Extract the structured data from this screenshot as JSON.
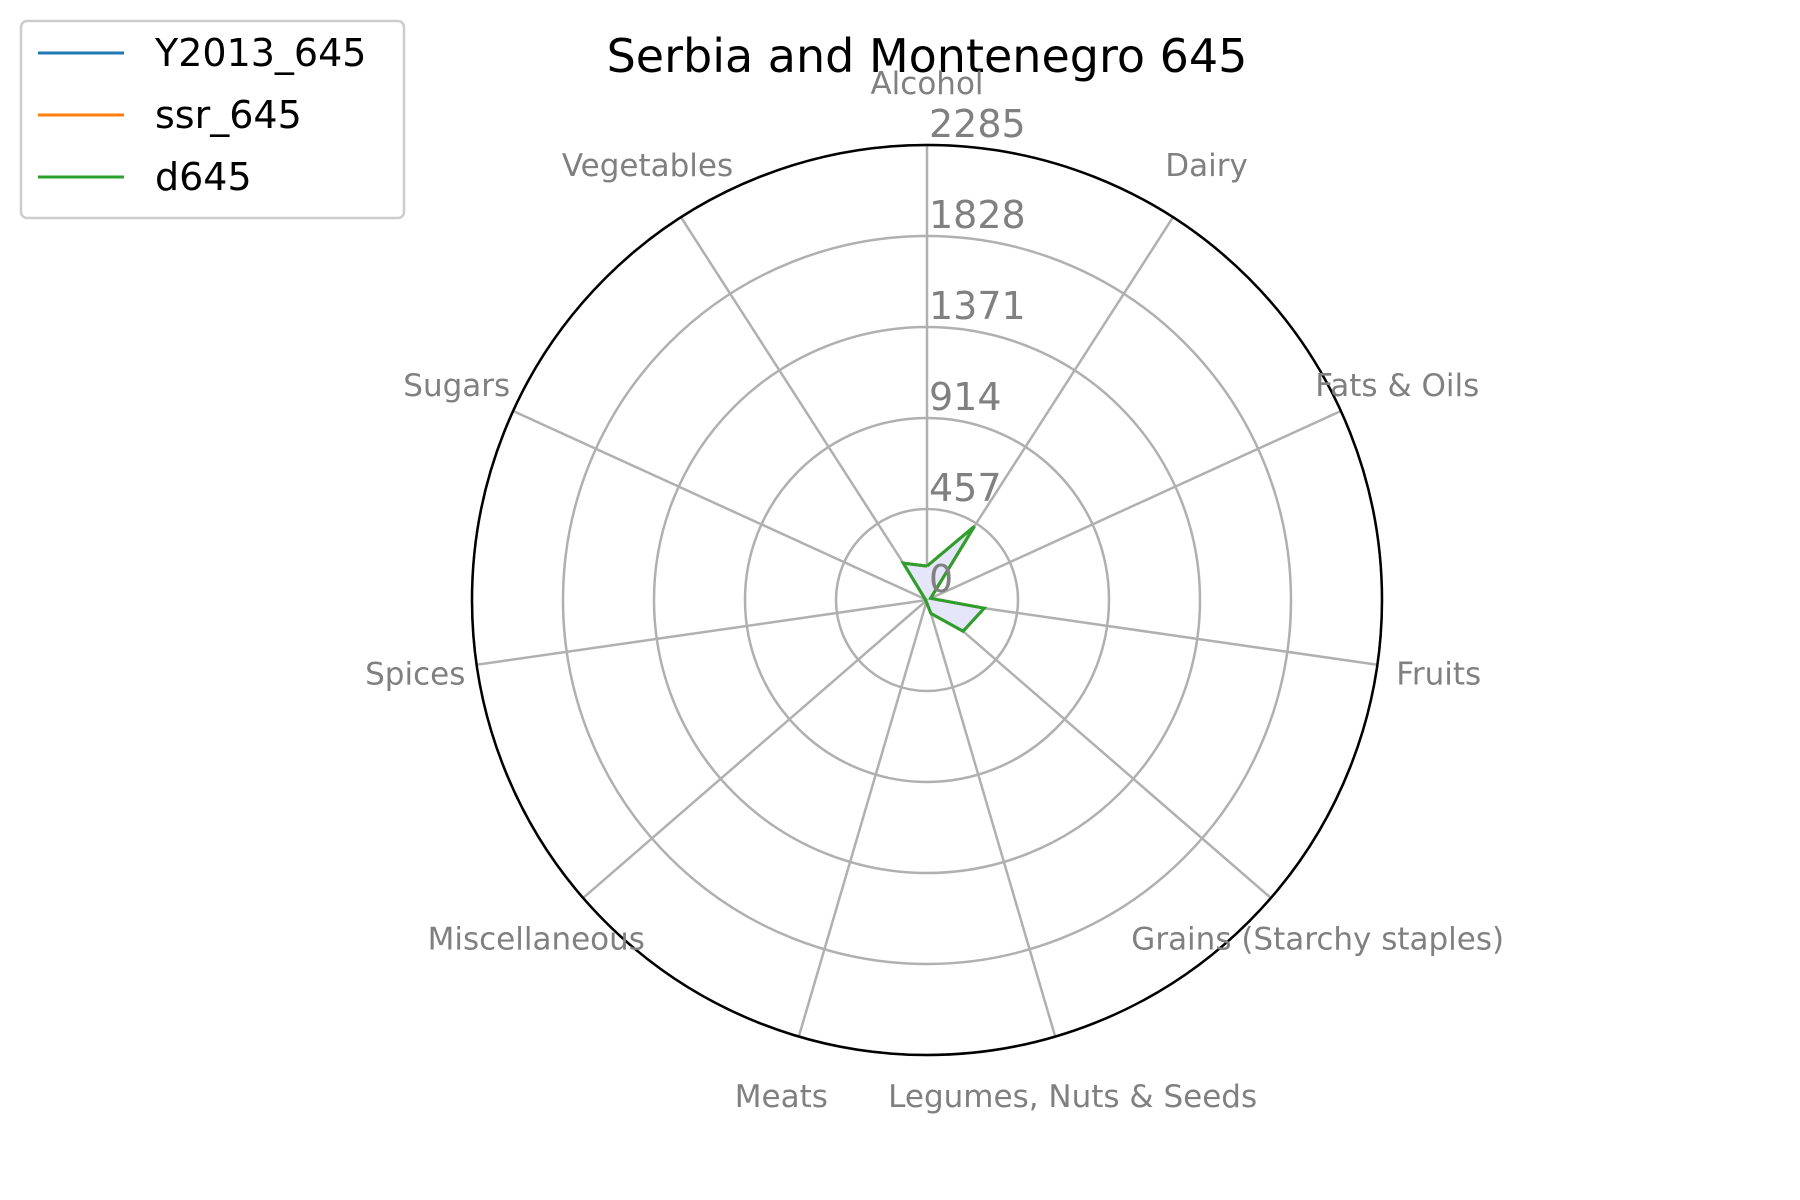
{
  "chart_data": {
    "type": "radar",
    "title": "Serbia and Montenegro 645",
    "categories": [
      "Alcohol",
      "Dairy",
      "Fats & Oils",
      "Fruits",
      "Grains (Starchy staples)",
      "Legumes, Nuts & Seeds",
      "Meats",
      "Miscellaneous",
      "Spices",
      "Sugars",
      "Vegetables"
    ],
    "rticks": [
      "0",
      "457",
      "914",
      "1371",
      "1828",
      "2285"
    ],
    "rlim": [
      0,
      2285
    ],
    "grid": true,
    "legend_position": "top-left",
    "series": [
      {
        "name": "Y2013_645",
        "color": "#1f77b4",
        "values": [
          170,
          440,
          20,
          290,
          240,
          70,
          10,
          8,
          5,
          10,
          220
        ]
      },
      {
        "name": "ssr_645",
        "color": "#ff7f0e",
        "values": [
          170,
          440,
          20,
          290,
          240,
          70,
          10,
          8,
          5,
          10,
          220
        ]
      },
      {
        "name": "d645",
        "color": "#2ca02c",
        "values": [
          170,
          440,
          20,
          290,
          240,
          70,
          10,
          8,
          5,
          10,
          220
        ]
      }
    ],
    "fill_color": "#e6e6fa"
  }
}
